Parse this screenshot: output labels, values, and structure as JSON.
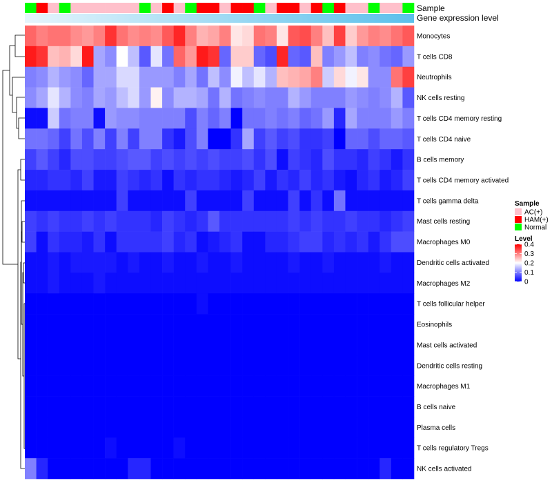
{
  "chart_data": {
    "type": "heatmap",
    "title": "",
    "annotation_labels": {
      "sample": "Sample",
      "gene_expression": "Gene expression level"
    },
    "sample_colors": {
      "AC(+)": "#ffc0cb",
      "HAM(+)": "#ff0000",
      "Normal": "#00ff00"
    },
    "expression_bar_gradient": [
      "#e6f5fc",
      "#5bc0eb"
    ],
    "columns_sample": [
      "Normal",
      "HAM(+)",
      "AC(+)",
      "Normal",
      "AC(+)",
      "AC(+)",
      "AC(+)",
      "AC(+)",
      "AC(+)",
      "AC(+)",
      "Normal",
      "AC(+)",
      "HAM(+)",
      "AC(+)",
      "Normal",
      "HAM(+)",
      "HAM(+)",
      "AC(+)",
      "HAM(+)",
      "HAM(+)",
      "Normal",
      "AC(+)",
      "HAM(+)",
      "HAM(+)",
      "AC(+)",
      "HAM(+)",
      "Normal",
      "HAM(+)",
      "AC(+)",
      "AC(+)",
      "Normal",
      "AC(+)",
      "AC(+)",
      "Normal"
    ],
    "rows": [
      "Monocytes",
      "T cells CD8",
      "Neutrophils",
      "NK cells resting",
      "T cells CD4 memory resting",
      "T cells CD4 naive",
      "B cells memory",
      "T cells CD4 memory activated",
      "T cells gamma delta",
      "Mast cells resting",
      "Macrophages M0",
      "Dendritic cells activated",
      "Macrophages M2",
      "T cells follicular helper",
      "Eosinophils",
      "Mast cells activated",
      "Dendritic cells resting",
      "Macrophages M1",
      "B cells naive",
      "Plasma cells",
      "T cells regulatory  Tregs",
      "NK cells activated"
    ],
    "values": [
      [
        0.32,
        0.3,
        0.31,
        0.31,
        0.29,
        0.28,
        0.3,
        0.36,
        0.31,
        0.29,
        0.3,
        0.29,
        0.33,
        0.37,
        0.3,
        0.26,
        0.27,
        0.3,
        0.22,
        0.23,
        0.31,
        0.3,
        0.22,
        0.33,
        0.34,
        0.3,
        0.25,
        0.35,
        0.24,
        0.28,
        0.3,
        0.29,
        0.31,
        0.33
      ],
      [
        0.38,
        0.36,
        0.25,
        0.26,
        0.23,
        0.38,
        0.13,
        0.11,
        0.2,
        0.15,
        0.07,
        0.18,
        0.09,
        0.32,
        0.28,
        0.38,
        0.36,
        0.08,
        0.24,
        0.24,
        0.08,
        0.06,
        0.37,
        0.08,
        0.07,
        0.25,
        0.1,
        0.12,
        0.15,
        0.1,
        0.11,
        0.09,
        0.08,
        0.12
      ],
      [
        0.1,
        0.11,
        0.14,
        0.12,
        0.11,
        0.08,
        0.13,
        0.13,
        0.17,
        0.17,
        0.12,
        0.12,
        0.12,
        0.1,
        0.13,
        0.09,
        0.15,
        0.11,
        0.19,
        0.15,
        0.18,
        0.14,
        0.25,
        0.26,
        0.27,
        0.3,
        0.16,
        0.23,
        0.19,
        0.22,
        0.11,
        0.11,
        0.31,
        0.35
      ],
      [
        0.11,
        0.13,
        0.18,
        0.14,
        0.11,
        0.1,
        0.13,
        0.12,
        0.15,
        0.17,
        0.12,
        0.21,
        0.11,
        0.14,
        0.14,
        0.13,
        0.09,
        0.14,
        0.09,
        0.1,
        0.11,
        0.1,
        0.1,
        0.14,
        0.12,
        0.1,
        0.1,
        0.1,
        0.12,
        0.11,
        0.1,
        0.11,
        0.14,
        0.07
      ],
      [
        0.01,
        0.01,
        0.16,
        0.09,
        0.1,
        0.1,
        0.01,
        0.12,
        0.11,
        0.11,
        0.1,
        0.1,
        0.1,
        0.1,
        0.06,
        0.1,
        0.08,
        0.1,
        0.0,
        0.09,
        0.09,
        0.1,
        0.09,
        0.1,
        0.08,
        0.09,
        0.12,
        0.03,
        0.13,
        0.1,
        0.1,
        0.1,
        0.12,
        0.1
      ],
      [
        0.09,
        0.09,
        0.08,
        0.05,
        0.09,
        0.06,
        0.1,
        0.05,
        0.1,
        0.05,
        0.1,
        0.1,
        0.04,
        0.02,
        0.06,
        0.1,
        0.0,
        0.0,
        0.04,
        0.13,
        0.05,
        0.07,
        0.05,
        0.06,
        0.04,
        0.04,
        0.05,
        0.0,
        0.08,
        0.08,
        0.06,
        0.08,
        0.08,
        0.07
      ],
      [
        0.05,
        0.07,
        0.05,
        0.03,
        0.06,
        0.06,
        0.05,
        0.05,
        0.06,
        0.07,
        0.07,
        0.05,
        0.06,
        0.05,
        0.06,
        0.05,
        0.06,
        0.05,
        0.05,
        0.06,
        0.04,
        0.06,
        0.01,
        0.05,
        0.04,
        0.03,
        0.06,
        0.04,
        0.04,
        0.03,
        0.05,
        0.04,
        0.02,
        0.04
      ],
      [
        0.03,
        0.03,
        0.04,
        0.04,
        0.03,
        0.05,
        0.02,
        0.02,
        0.05,
        0.04,
        0.03,
        0.04,
        0.01,
        0.04,
        0.03,
        0.04,
        0.04,
        0.03,
        0.02,
        0.03,
        0.05,
        0.02,
        0.04,
        0.03,
        0.05,
        0.03,
        0.04,
        0.02,
        0.01,
        0.03,
        0.04,
        0.02,
        0.03,
        0.05
      ],
      [
        0.01,
        0.01,
        0.01,
        0.01,
        0.01,
        0.01,
        0.01,
        0.01,
        0.05,
        0.01,
        0.01,
        0.01,
        0.01,
        0.01,
        0.05,
        0.01,
        0.01,
        0.01,
        0.01,
        0.05,
        0.01,
        0.01,
        0.01,
        0.05,
        0.01,
        0.04,
        0.01,
        0.09,
        0.01,
        0.01,
        0.01,
        0.01,
        0.01,
        0.01
      ],
      [
        0.05,
        0.04,
        0.05,
        0.04,
        0.04,
        0.05,
        0.04,
        0.05,
        0.04,
        0.04,
        0.04,
        0.03,
        0.05,
        0.04,
        0.03,
        0.04,
        0.07,
        0.04,
        0.04,
        0.04,
        0.04,
        0.04,
        0.04,
        0.05,
        0.04,
        0.05,
        0.04,
        0.04,
        0.05,
        0.04,
        0.04,
        0.03,
        0.04,
        0.05
      ],
      [
        0.05,
        0.01,
        0.04,
        0.03,
        0.03,
        0.02,
        0.04,
        0.01,
        0.04,
        0.04,
        0.04,
        0.04,
        0.05,
        0.03,
        0.04,
        0.01,
        0.02,
        0.03,
        0.04,
        0.01,
        0.01,
        0.03,
        0.03,
        0.04,
        0.05,
        0.05,
        0.03,
        0.04,
        0.03,
        0.04,
        0.02,
        0.04,
        0.06,
        0.06
      ],
      [
        0.01,
        0.01,
        0.02,
        0.01,
        0.02,
        0.02,
        0.02,
        0.02,
        0.01,
        0.02,
        0.01,
        0.01,
        0.02,
        0.01,
        0.01,
        0.02,
        0.01,
        0.01,
        0.02,
        0.01,
        0.01,
        0.01,
        0.01,
        0.02,
        0.01,
        0.01,
        0.02,
        0.01,
        0.01,
        0.01,
        0.01,
        0.02,
        0.01,
        0.01
      ],
      [
        0.01,
        0.01,
        0.02,
        0.01,
        0.01,
        0.01,
        0.02,
        0.01,
        0.01,
        0.01,
        0.01,
        0.01,
        0.01,
        0.01,
        0.01,
        0.01,
        0.01,
        0.01,
        0.01,
        0.01,
        0.01,
        0.01,
        0.01,
        0.01,
        0.01,
        0.01,
        0.01,
        0.01,
        0.01,
        0.01,
        0.01,
        0.01,
        0.01,
        0.01
      ],
      [
        0.0,
        0.0,
        0.0,
        0.0,
        0.0,
        0.0,
        0.0,
        0.0,
        0.0,
        0.0,
        0.0,
        0.0,
        0.0,
        0.0,
        0.0,
        0.01,
        0.0,
        0.0,
        0.0,
        0.0,
        0.0,
        0.0,
        0.0,
        0.0,
        0.0,
        0.0,
        0.0,
        0.0,
        0.0,
        0.0,
        0.0,
        0.0,
        0.0,
        0.0
      ],
      [
        0.0,
        0.0,
        0.0,
        0.0,
        0.0,
        0.0,
        0.0,
        0.0,
        0.0,
        0.0,
        0.0,
        0.0,
        0.0,
        0.0,
        0.0,
        0.0,
        0.0,
        0.0,
        0.0,
        0.0,
        0.0,
        0.0,
        0.0,
        0.0,
        0.0,
        0.0,
        0.0,
        0.0,
        0.0,
        0.0,
        0.0,
        0.0,
        0.0,
        0.0
      ],
      [
        0.0,
        0.0,
        0.0,
        0.0,
        0.0,
        0.0,
        0.0,
        0.0,
        0.0,
        0.0,
        0.0,
        0.0,
        0.0,
        0.0,
        0.0,
        0.0,
        0.0,
        0.0,
        0.0,
        0.0,
        0.0,
        0.0,
        0.0,
        0.0,
        0.0,
        0.0,
        0.0,
        0.0,
        0.0,
        0.0,
        0.0,
        0.0,
        0.0,
        0.0
      ],
      [
        0.0,
        0.0,
        0.0,
        0.0,
        0.0,
        0.0,
        0.0,
        0.0,
        0.0,
        0.0,
        0.0,
        0.0,
        0.0,
        0.0,
        0.0,
        0.0,
        0.0,
        0.0,
        0.0,
        0.0,
        0.0,
        0.0,
        0.0,
        0.0,
        0.0,
        0.0,
        0.0,
        0.0,
        0.0,
        0.0,
        0.0,
        0.0,
        0.0,
        0.0
      ],
      [
        0.0,
        0.0,
        0.0,
        0.0,
        0.0,
        0.0,
        0.0,
        0.0,
        0.0,
        0.0,
        0.0,
        0.0,
        0.0,
        0.0,
        0.0,
        0.0,
        0.0,
        0.0,
        0.0,
        0.0,
        0.0,
        0.0,
        0.0,
        0.0,
        0.0,
        0.0,
        0.0,
        0.0,
        0.0,
        0.0,
        0.0,
        0.0,
        0.0,
        0.0
      ],
      [
        0.0,
        0.0,
        0.0,
        0.0,
        0.0,
        0.0,
        0.0,
        0.0,
        0.0,
        0.0,
        0.0,
        0.0,
        0.0,
        0.0,
        0.0,
        0.0,
        0.0,
        0.0,
        0.0,
        0.0,
        0.0,
        0.0,
        0.0,
        0.0,
        0.0,
        0.0,
        0.0,
        0.0,
        0.0,
        0.0,
        0.0,
        0.0,
        0.0,
        0.0
      ],
      [
        0.0,
        0.0,
        0.0,
        0.0,
        0.0,
        0.0,
        0.0,
        0.0,
        0.0,
        0.0,
        0.0,
        0.0,
        0.0,
        0.0,
        0.0,
        0.0,
        0.0,
        0.0,
        0.0,
        0.0,
        0.0,
        0.0,
        0.0,
        0.0,
        0.0,
        0.0,
        0.0,
        0.0,
        0.0,
        0.0,
        0.0,
        0.0,
        0.0,
        0.0
      ],
      [
        0.0,
        0.0,
        0.0,
        0.0,
        0.0,
        0.0,
        0.0,
        0.01,
        0.0,
        0.0,
        0.0,
        0.0,
        0.0,
        0.01,
        0.0,
        0.0,
        0.0,
        0.0,
        0.0,
        0.0,
        0.0,
        0.0,
        0.0,
        0.0,
        0.0,
        0.0,
        0.0,
        0.0,
        0.0,
        0.0,
        0.0,
        0.0,
        0.0,
        0.0
      ],
      [
        0.1,
        0.03,
        0.0,
        0.0,
        0.0,
        0.0,
        0.0,
        0.0,
        0.0,
        0.03,
        0.03,
        0.0,
        0.0,
        0.0,
        0.0,
        0.0,
        0.0,
        0.0,
        0.0,
        0.0,
        0.0,
        0.0,
        0.0,
        0.0,
        0.0,
        0.0,
        0.0,
        0.0,
        0.0,
        0.0,
        0.0,
        0.03,
        0.0,
        0.0
      ]
    ],
    "legend": {
      "sample_title": "Sample",
      "sample_entries": [
        {
          "label": "AC(+)",
          "color": "#ffc0cb"
        },
        {
          "label": "HAM(+)",
          "color": "#ff0000"
        },
        {
          "label": "Normal",
          "color": "#00ff00"
        }
      ],
      "level_title": "Level",
      "level_ticks": [
        "0.4",
        "0.3",
        "0.2",
        "0.1",
        "0"
      ],
      "level_range": [
        0,
        0.4
      ],
      "level_colors": [
        "#0000ff",
        "#ffffff",
        "#ff0000"
      ]
    }
  }
}
